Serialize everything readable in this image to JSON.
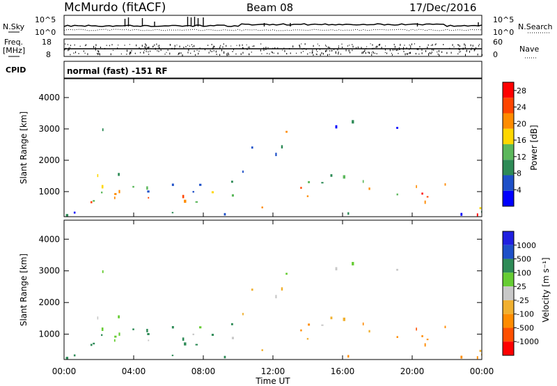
{
  "header": {
    "station": "McMurdo (fitACF)",
    "beam": "Beam 08",
    "date": "17/Dec/2016"
  },
  "top_panels": {
    "nsky_label": "N.Sky",
    "nsearch_label": "N.Search",
    "noise_ticks": [
      "10^5",
      "10^0"
    ],
    "freq_label": "Freq.",
    "freq_unit": "[MHz]",
    "freq_ticks": [
      "18",
      "8"
    ],
    "nave_label": "Nave",
    "nave_ticks": [
      "60",
      "0"
    ],
    "cpid_label": "CPID",
    "cpid_text": "normal (fast) -151 RF"
  },
  "colors": {
    "power": [
      "#0000ff",
      "#1e50c8",
      "#2e8b57",
      "#5cb85c",
      "#ffd700",
      "#ff8c00",
      "#ff4500",
      "#ff0000"
    ],
    "velocity": [
      "#2020e0",
      "#1e50c8",
      "#2e8b57",
      "#66cc33",
      "#c8c8c8",
      "#f0b030",
      "#ff8c00",
      "#ff5000",
      "#ff0000"
    ]
  },
  "chart_data": [
    {
      "type": "heatmap",
      "title": "",
      "xlabel": "Time UT",
      "ylabel": "Slant Range [km]",
      "xlim": [
        "00:00",
        "24:00"
      ],
      "ylim": [
        200,
        4600
      ],
      "x_ticks": [
        "00:00",
        "04:00",
        "08:00",
        "12:00",
        "16:00",
        "20:00",
        "00:00"
      ],
      "y_ticks": [
        "1000",
        "2000",
        "3000",
        "4000"
      ],
      "colorbar": {
        "label": "Power [dB]",
        "ticks": [
          "4",
          "8",
          "12",
          "16",
          "20",
          "24",
          "28"
        ],
        "range": [
          0,
          30
        ]
      }
    },
    {
      "type": "heatmap",
      "title": "",
      "xlabel": "Time UT",
      "ylabel": "Slant Range [km]",
      "xlim": [
        "00:00",
        "24:00"
      ],
      "ylim": [
        200,
        4600
      ],
      "x_ticks": [
        "00:00",
        "04:00",
        "08:00",
        "12:00",
        "16:00",
        "20:00",
        "00:00"
      ],
      "y_ticks": [
        "1000",
        "2000",
        "3000",
        "4000"
      ],
      "colorbar": {
        "label": "Velocity [m s⁻¹]",
        "ticks": [
          "1000",
          "500",
          "100",
          "25",
          "-25",
          "-100",
          "-500",
          "-1000"
        ]
      }
    }
  ]
}
